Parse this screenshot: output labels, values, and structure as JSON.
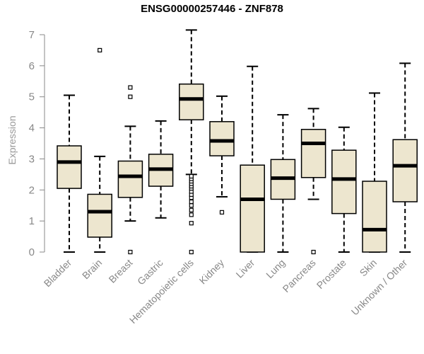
{
  "chart_data": {
    "type": "box",
    "title": "ENSG00000257446 - ZNF878",
    "xlabel": "",
    "ylabel": "Expression",
    "ylim": [
      0,
      7
    ],
    "yticks": [
      "0",
      "1",
      "2",
      "3",
      "4",
      "5",
      "6",
      "7"
    ],
    "grid": false,
    "colors": {
      "box_fill": "#ede6cf",
      "stroke": "#000000",
      "axis_text": "#888888"
    },
    "categories": [
      "Bladder",
      "Brain",
      "Breast",
      "Gastric",
      "Hematopoietic cells",
      "Kidney",
      "Liver",
      "Lung",
      "Pancreas",
      "Prostate",
      "Skin",
      "Unknown / Other"
    ],
    "boxes": [
      {
        "min": 0.0,
        "q1": 2.05,
        "median": 2.9,
        "q3": 3.42,
        "max": 5.05,
        "outliers": []
      },
      {
        "min": 0.0,
        "q1": 0.48,
        "median": 1.3,
        "q3": 1.86,
        "max": 3.08,
        "outliers": [
          6.5
        ]
      },
      {
        "min": 1.0,
        "q1": 1.76,
        "median": 2.44,
        "q3": 2.93,
        "max": 4.05,
        "outliers": [
          0.0,
          5.0,
          5.3
        ]
      },
      {
        "min": 1.1,
        "q1": 2.12,
        "median": 2.67,
        "q3": 3.15,
        "max": 4.22,
        "outliers": []
      },
      {
        "min": 2.5,
        "q1": 4.26,
        "median": 4.93,
        "q3": 5.41,
        "max": 7.15,
        "outliers": [
          0.0,
          0.93,
          1.2,
          1.35,
          1.5,
          1.62,
          1.75,
          1.85,
          1.95,
          2.05,
          2.12,
          2.2,
          2.28,
          2.36,
          2.44
        ]
      },
      {
        "min": 1.78,
        "q1": 3.1,
        "median": 3.58,
        "q3": 4.2,
        "max": 5.02,
        "outliers": [
          1.28
        ]
      },
      {
        "min": 0.0,
        "q1": 0.0,
        "median": 1.7,
        "q3": 2.8,
        "max": 5.98,
        "outliers": []
      },
      {
        "min": 0.0,
        "q1": 1.7,
        "median": 2.38,
        "q3": 2.98,
        "max": 4.42,
        "outliers": []
      },
      {
        "min": 1.7,
        "q1": 2.4,
        "median": 3.5,
        "q3": 3.95,
        "max": 4.62,
        "outliers": [
          0.0
        ]
      },
      {
        "min": 0.0,
        "q1": 1.24,
        "median": 2.35,
        "q3": 3.28,
        "max": 4.02,
        "outliers": []
      },
      {
        "min": 0.0,
        "q1": 0.0,
        "median": 0.72,
        "q3": 2.28,
        "max": 5.12,
        "outliers": []
      },
      {
        "min": 0.0,
        "q1": 1.62,
        "median": 2.78,
        "q3": 3.62,
        "max": 6.08,
        "outliers": []
      }
    ]
  }
}
